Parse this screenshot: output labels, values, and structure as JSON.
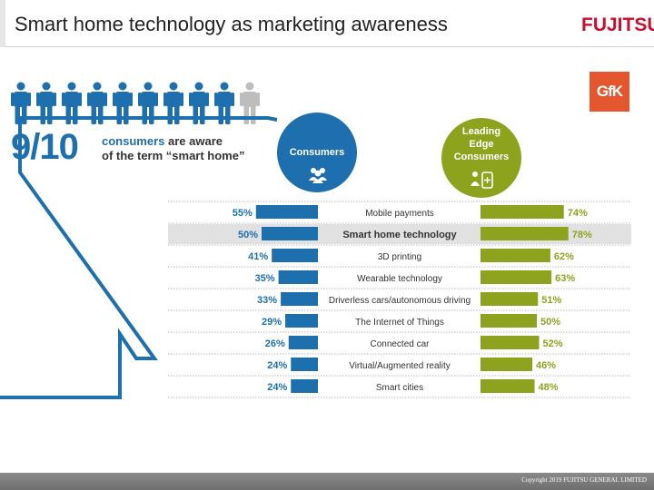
{
  "header": {
    "title": "Smart home technology as marketing awareness",
    "brand": "FUJITSU"
  },
  "partner_logo": "GfK",
  "awareness": {
    "ratio": "9/10",
    "aware_count": 9,
    "total_count": 10,
    "text_part1": "consumers",
    "text_part2": "are aware",
    "text_line2": "of the term “smart home”"
  },
  "groups": {
    "consumers": "Consumers",
    "leading_line1": "Leading",
    "leading_line2": "Edge",
    "leading_line3": "Consumers"
  },
  "colors": {
    "consumers": "#1d6fad",
    "leading": "#8ea31d",
    "highlight_row": "#e1e1e1"
  },
  "chart_data": {
    "type": "bar",
    "orientation": "diverging-horizontal",
    "categories": [
      "Mobile payments",
      "Smart home technology",
      "3D printing",
      "Wearable technology",
      "Driverless cars/autonomous driving",
      "The Internet of Things",
      "Connected car",
      "Virtual/Augmented reality",
      "Smart cities"
    ],
    "highlighted_category": "Smart home technology",
    "series": [
      {
        "name": "Consumers",
        "values": [
          55,
          50,
          41,
          35,
          33,
          29,
          26,
          24,
          24
        ]
      },
      {
        "name": "Leading Edge Consumers",
        "values": [
          74,
          78,
          62,
          63,
          51,
          50,
          52,
          46,
          48
        ]
      }
    ],
    "value_format": "percent",
    "xlim": [
      0,
      100
    ]
  },
  "footer": {
    "copyright": "Copyright 2019 FUJITSU GENERAL LIMITED"
  }
}
